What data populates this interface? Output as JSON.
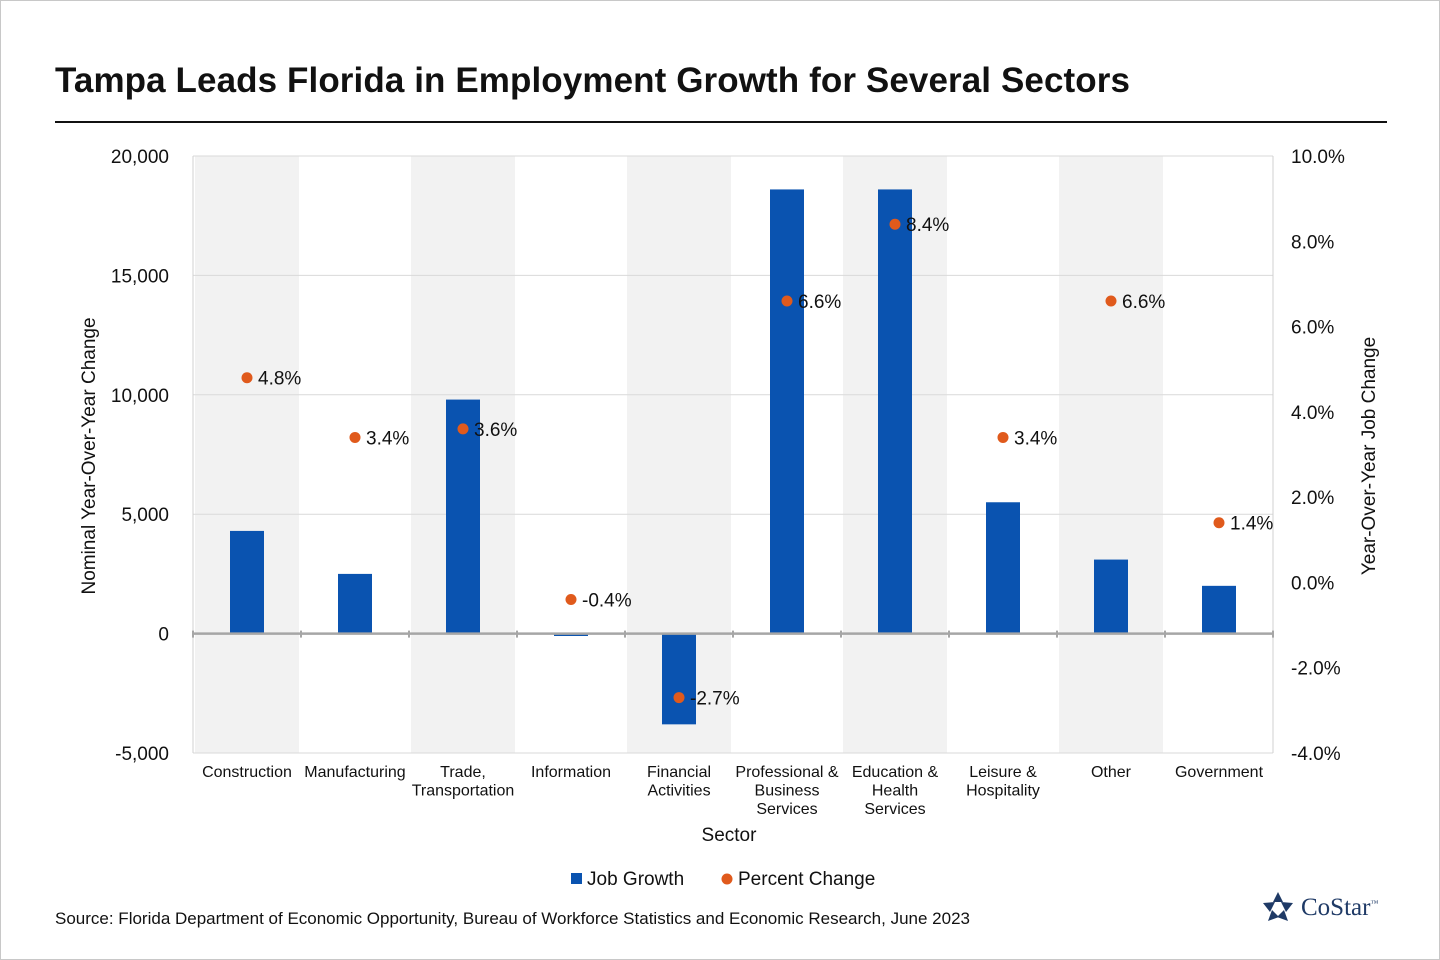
{
  "chart_data": {
    "type": "bar",
    "title": "Tampa Leads Florida in Employment Growth for Several Sectors",
    "xlabel": "Sector",
    "ylabel": "Nominal  Year-Over-Year Change",
    "y2label": "Year-Over-Year Job Change",
    "ylim": [
      -5000,
      20000
    ],
    "y2lim": [
      -4.0,
      10.0
    ],
    "yticks": [
      "20,000",
      "15,000",
      "10,000",
      "5,000",
      "0",
      "-5,000"
    ],
    "y2ticks": [
      "10.0%",
      "8.0%",
      "6.0%",
      "4.0%",
      "2.0%",
      "0.0%",
      "-2.0%",
      "-4.0%"
    ],
    "categories": [
      [
        "Construction"
      ],
      [
        "Manufacturing"
      ],
      [
        "Trade,",
        "Transportation"
      ],
      [
        "Information"
      ],
      [
        "Financial",
        "Activities"
      ],
      [
        "Professional &",
        "Business",
        "Services"
      ],
      [
        "Education &",
        "Health",
        "Services"
      ],
      [
        "Leisure &",
        "Hospitality"
      ],
      [
        "Other"
      ],
      [
        "Government"
      ]
    ],
    "series": [
      {
        "name": "Job Growth",
        "type": "bar",
        "axis": "left",
        "color": "#0a53b0",
        "values": [
          4300,
          2500,
          9800,
          -100,
          -3800,
          18600,
          18600,
          5500,
          3100,
          2000
        ]
      },
      {
        "name": "Percent Change",
        "type": "scatter",
        "axis": "right",
        "color": "#e05a1c",
        "values": [
          4.8,
          3.4,
          3.6,
          -0.4,
          -2.7,
          6.6,
          8.4,
          3.4,
          6.6,
          1.4
        ],
        "labels": [
          "4.8%",
          "3.4%",
          "3.6%",
          "-0.4%",
          "-2.7%",
          "6.6%",
          "8.4%",
          "3.4%",
          "6.6%",
          "1.4%"
        ]
      }
    ],
    "shaded_bands": [
      0,
      2,
      4,
      6,
      8
    ],
    "band_color": "#f2f2f2",
    "grid": true,
    "legend": "bottom-center"
  },
  "source": "Source: Florida Department of Economic Opportunity, Bureau of Workforce Statistics and Economic Research, June 2023",
  "logo": {
    "text": "CoStar",
    "tm": "™",
    "color": "#1f3a66"
  }
}
